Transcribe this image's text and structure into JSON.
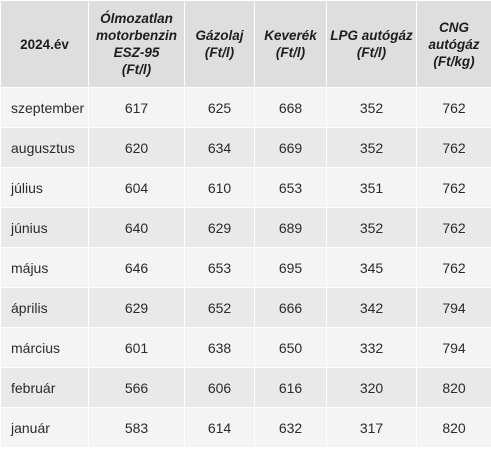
{
  "header": {
    "year": "2024.év",
    "col1": "Ólmozatlan\nmotorbenzin\nESZ-95\n(Ft/l)",
    "col2": "Gázolaj\n(Ft/l)",
    "col3": "Keverék\n(Ft/l)",
    "col4": "LPG autógáz\n(Ft/l)",
    "col5": "CNG\nautógáz\n(Ft/kg)"
  },
  "rows": [
    {
      "month": "szeptember",
      "benzin": "617",
      "gazolaj": "625",
      "keverek": "668",
      "lpg": "352",
      "cng": "762"
    },
    {
      "month": "augusztus",
      "benzin": "620",
      "gazolaj": "634",
      "keverek": "669",
      "lpg": "352",
      "cng": "762"
    },
    {
      "month": "július",
      "benzin": "604",
      "gazolaj": "610",
      "keverek": "653",
      "lpg": "351",
      "cng": "762"
    },
    {
      "month": "június",
      "benzin": "640",
      "gazolaj": "629",
      "keverek": "689",
      "lpg": "352",
      "cng": "762"
    },
    {
      "month": "május",
      "benzin": "646",
      "gazolaj": "653",
      "keverek": "695",
      "lpg": "345",
      "cng": "762"
    },
    {
      "month": "április",
      "benzin": "629",
      "gazolaj": "652",
      "keverek": "666",
      "lpg": "342",
      "cng": "794"
    },
    {
      "month": "március",
      "benzin": "601",
      "gazolaj": "638",
      "keverek": "650",
      "lpg": "332",
      "cng": "794"
    },
    {
      "month": "február",
      "benzin": "566",
      "gazolaj": "606",
      "keverek": "616",
      "lpg": "320",
      "cng": "820"
    },
    {
      "month": "január",
      "benzin": "583",
      "gazolaj": "614",
      "keverek": "632",
      "lpg": "317",
      "cng": "820"
    }
  ]
}
